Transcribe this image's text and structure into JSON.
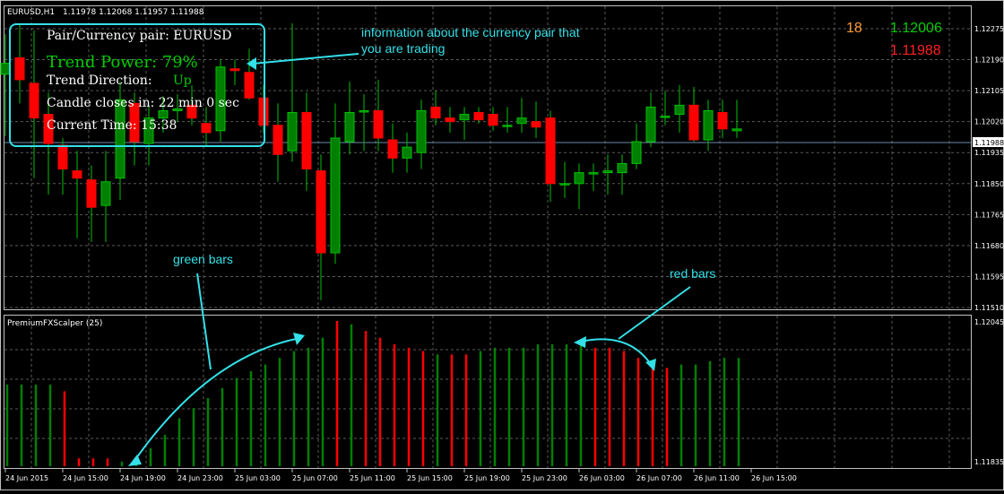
{
  "chart_header": {
    "symbol_tf": "EURUSD,H1",
    "ohlc": "1.11978 1.12068 1.11957 1.11988"
  },
  "indicator_header": {
    "label": "PremiumFXScalper (25)"
  },
  "info_box": {
    "pair_line": "Pair/Currency pair: EURUSD",
    "trend_power": "Trend Power: 79%",
    "direction_label": "Trend Direction:",
    "direction_value": "Up",
    "candle_line": "Candle closes in: 22 min 0 sec",
    "time_line": "Current Time: 15:38"
  },
  "top_right": {
    "counter": "18",
    "price_high": "1.12006",
    "price_low": "1.11988"
  },
  "annotations": {
    "info": [
      "information about the currency pair that",
      "you are trading"
    ],
    "green_bars": "green bars",
    "red_bars": "red bars"
  },
  "price_axis": {
    "labels": [
      "1.12275",
      "1.12190",
      "1.12105",
      "1.12020",
      "1.11935",
      "1.11850",
      "1.11765",
      "1.11680",
      "1.11595",
      "1.11510"
    ],
    "current_price": "1.11988"
  },
  "indicator_axis": {
    "top": "1.12045",
    "bottom": "1.11835"
  },
  "time_axis": {
    "labels": [
      "24 Jun 2015",
      "24 Jun 15:00",
      "24 Jun 19:00",
      "24 Jun 23:00",
      "25 Jun 03:00",
      "25 Jun 07:00",
      "25 Jun 11:00",
      "25 Jun 15:00",
      "25 Jun 19:00",
      "25 Jun 23:00",
      "26 Jun 03:00",
      "26 Jun 07:00",
      "26 Jun 11:00",
      "26 Jun 15:00"
    ]
  },
  "colors": {
    "bull": "#008000",
    "bear": "#ff0000",
    "wick": "#00c000",
    "accent": "#33e0e8",
    "orange": "#ff9933",
    "green_text": "#00cc00"
  },
  "chart_data": [
    {
      "type": "candlestick",
      "title": "EURUSD,H1",
      "ohlc": [
        {
          "o": 1.1215,
          "h": 1.1226,
          "l": 1.1198,
          "c": 1.1218
        },
        {
          "o": 1.12195,
          "h": 1.1229,
          "l": 1.1207,
          "c": 1.12135
        },
        {
          "o": 1.12125,
          "h": 1.1227,
          "l": 1.11865,
          "c": 1.1203
        },
        {
          "o": 1.1204,
          "h": 1.121,
          "l": 1.1182,
          "c": 1.1196
        },
        {
          "o": 1.11955,
          "h": 1.11975,
          "l": 1.1182,
          "c": 1.1189
        },
        {
          "o": 1.11885,
          "h": 1.1194,
          "l": 1.117,
          "c": 1.11865
        },
        {
          "o": 1.1186,
          "h": 1.119,
          "l": 1.1169,
          "c": 1.11785
        },
        {
          "o": 1.1179,
          "h": 1.1194,
          "l": 1.1169,
          "c": 1.11855
        },
        {
          "o": 1.11865,
          "h": 1.1213,
          "l": 1.11805,
          "c": 1.1208
        },
        {
          "o": 1.1207,
          "h": 1.121,
          "l": 1.119,
          "c": 1.11965
        },
        {
          "o": 1.1196,
          "h": 1.12065,
          "l": 1.119,
          "c": 1.1203
        },
        {
          "o": 1.1203,
          "h": 1.1209,
          "l": 1.1199,
          "c": 1.1205
        },
        {
          "o": 1.1205,
          "h": 1.12095,
          "l": 1.1202,
          "c": 1.12055
        },
        {
          "o": 1.12065,
          "h": 1.1212,
          "l": 1.1201,
          "c": 1.1203
        },
        {
          "o": 1.12015,
          "h": 1.1206,
          "l": 1.1195,
          "c": 1.1199
        },
        {
          "o": 1.11995,
          "h": 1.1219,
          "l": 1.11965,
          "c": 1.1217
        },
        {
          "o": 1.12165,
          "h": 1.1219,
          "l": 1.1212,
          "c": 1.1216
        },
        {
          "o": 1.12155,
          "h": 1.1222,
          "l": 1.1208,
          "c": 1.12085
        },
        {
          "o": 1.12085,
          "h": 1.1212,
          "l": 1.1199,
          "c": 1.1201
        },
        {
          "o": 1.1201,
          "h": 1.1207,
          "l": 1.11855,
          "c": 1.1193
        },
        {
          "o": 1.1194,
          "h": 1.1229,
          "l": 1.1191,
          "c": 1.12045
        },
        {
          "o": 1.12045,
          "h": 1.121,
          "l": 1.1183,
          "c": 1.1189
        },
        {
          "o": 1.11885,
          "h": 1.1193,
          "l": 1.1153,
          "c": 1.1166
        },
        {
          "o": 1.1166,
          "h": 1.1207,
          "l": 1.1163,
          "c": 1.11975
        },
        {
          "o": 1.11965,
          "h": 1.1213,
          "l": 1.1193,
          "c": 1.12045
        },
        {
          "o": 1.1205,
          "h": 1.12095,
          "l": 1.1194,
          "c": 1.1205
        },
        {
          "o": 1.1205,
          "h": 1.12135,
          "l": 1.1194,
          "c": 1.11975
        },
        {
          "o": 1.1197,
          "h": 1.12015,
          "l": 1.1188,
          "c": 1.1192
        },
        {
          "o": 1.1192,
          "h": 1.1199,
          "l": 1.1188,
          "c": 1.1195
        },
        {
          "o": 1.11935,
          "h": 1.1208,
          "l": 1.1189,
          "c": 1.1205
        },
        {
          "o": 1.1206,
          "h": 1.12105,
          "l": 1.1201,
          "c": 1.1203
        },
        {
          "o": 1.1203,
          "h": 1.1206,
          "l": 1.1199,
          "c": 1.1202
        },
        {
          "o": 1.12025,
          "h": 1.1206,
          "l": 1.1197,
          "c": 1.1204
        },
        {
          "o": 1.12045,
          "h": 1.1206,
          "l": 1.12015,
          "c": 1.12025
        },
        {
          "o": 1.1204,
          "h": 1.1206,
          "l": 1.11995,
          "c": 1.1201
        },
        {
          "o": 1.1201,
          "h": 1.1206,
          "l": 1.1199,
          "c": 1.1201
        },
        {
          "o": 1.12015,
          "h": 1.12085,
          "l": 1.1199,
          "c": 1.1203
        },
        {
          "o": 1.1202,
          "h": 1.12075,
          "l": 1.11975,
          "c": 1.12005
        },
        {
          "o": 1.1203,
          "h": 1.1205,
          "l": 1.118,
          "c": 1.1185
        },
        {
          "o": 1.1185,
          "h": 1.1191,
          "l": 1.1181,
          "c": 1.1185
        },
        {
          "o": 1.1185,
          "h": 1.11905,
          "l": 1.1178,
          "c": 1.1188
        },
        {
          "o": 1.1188,
          "h": 1.11905,
          "l": 1.1183,
          "c": 1.1188
        },
        {
          "o": 1.1188,
          "h": 1.1193,
          "l": 1.1182,
          "c": 1.11885
        },
        {
          "o": 1.1188,
          "h": 1.1193,
          "l": 1.1182,
          "c": 1.11905
        },
        {
          "o": 1.11905,
          "h": 1.12015,
          "l": 1.1189,
          "c": 1.11965
        },
        {
          "o": 1.11965,
          "h": 1.121,
          "l": 1.1195,
          "c": 1.1206
        },
        {
          "o": 1.12035,
          "h": 1.12105,
          "l": 1.1201,
          "c": 1.12035
        },
        {
          "o": 1.1204,
          "h": 1.1212,
          "l": 1.1199,
          "c": 1.12065
        },
        {
          "o": 1.12065,
          "h": 1.12115,
          "l": 1.11965,
          "c": 1.1197
        },
        {
          "o": 1.1197,
          "h": 1.1208,
          "l": 1.1194,
          "c": 1.1205
        },
        {
          "o": 1.12045,
          "h": 1.1208,
          "l": 1.11975,
          "c": 1.12
        },
        {
          "o": 1.11995,
          "h": 1.1208,
          "l": 1.11975,
          "c": 1.12
        }
      ]
    },
    {
      "type": "bar",
      "title": "PremiumFXScalper (25)",
      "ylim": [
        1.11835,
        1.12045
      ],
      "values": [
        {
          "v": 1.1195,
          "c": "g"
        },
        {
          "v": 1.1195,
          "c": "g"
        },
        {
          "v": 1.1195,
          "c": "g"
        },
        {
          "v": 1.1195,
          "c": "g"
        },
        {
          "v": 1.1194,
          "c": "r"
        },
        {
          "v": 1.1184,
          "c": "r"
        },
        {
          "v": 1.1184,
          "c": "r"
        },
        {
          "v": 1.1184,
          "c": "r"
        },
        {
          "v": 1.11835,
          "c": "g"
        },
        {
          "v": 1.1184,
          "c": "g"
        },
        {
          "v": 1.11855,
          "c": "g"
        },
        {
          "v": 1.11875,
          "c": "g"
        },
        {
          "v": 1.119,
          "c": "g"
        },
        {
          "v": 1.11915,
          "c": "g"
        },
        {
          "v": 1.1193,
          "c": "g"
        },
        {
          "v": 1.11945,
          "c": "g"
        },
        {
          "v": 1.1196,
          "c": "g"
        },
        {
          "v": 1.1197,
          "c": "g"
        },
        {
          "v": 1.1198,
          "c": "g"
        },
        {
          "v": 1.1199,
          "c": "g"
        },
        {
          "v": 1.12,
          "c": "g"
        },
        {
          "v": 1.12005,
          "c": "g"
        },
        {
          "v": 1.1202,
          "c": "g"
        },
        {
          "v": 1.12045,
          "c": "r"
        },
        {
          "v": 1.1204,
          "c": "g"
        },
        {
          "v": 1.1203,
          "c": "r"
        },
        {
          "v": 1.1202,
          "c": "r"
        },
        {
          "v": 1.1201,
          "c": "r"
        },
        {
          "v": 1.12005,
          "c": "r"
        },
        {
          "v": 1.12,
          "c": "r"
        },
        {
          "v": 1.11995,
          "c": "g"
        },
        {
          "v": 1.11995,
          "c": "r"
        },
        {
          "v": 1.11995,
          "c": "r"
        },
        {
          "v": 1.12,
          "c": "g"
        },
        {
          "v": 1.12005,
          "c": "g"
        },
        {
          "v": 1.12005,
          "c": "g"
        },
        {
          "v": 1.12005,
          "c": "g"
        },
        {
          "v": 1.1201,
          "c": "g"
        },
        {
          "v": 1.1201,
          "c": "g"
        },
        {
          "v": 1.1201,
          "c": "g"
        },
        {
          "v": 1.1201,
          "c": "g"
        },
        {
          "v": 1.12005,
          "c": "r"
        },
        {
          "v": 1.12005,
          "c": "r"
        },
        {
          "v": 1.12,
          "c": "r"
        },
        {
          "v": 1.1199,
          "c": "r"
        },
        {
          "v": 1.1198,
          "c": "r"
        },
        {
          "v": 1.11975,
          "c": "r"
        },
        {
          "v": 1.1198,
          "c": "g"
        },
        {
          "v": 1.1198,
          "c": "g"
        },
        {
          "v": 1.11985,
          "c": "g"
        },
        {
          "v": 1.1199,
          "c": "g"
        },
        {
          "v": 1.1199,
          "c": "g"
        }
      ]
    }
  ]
}
